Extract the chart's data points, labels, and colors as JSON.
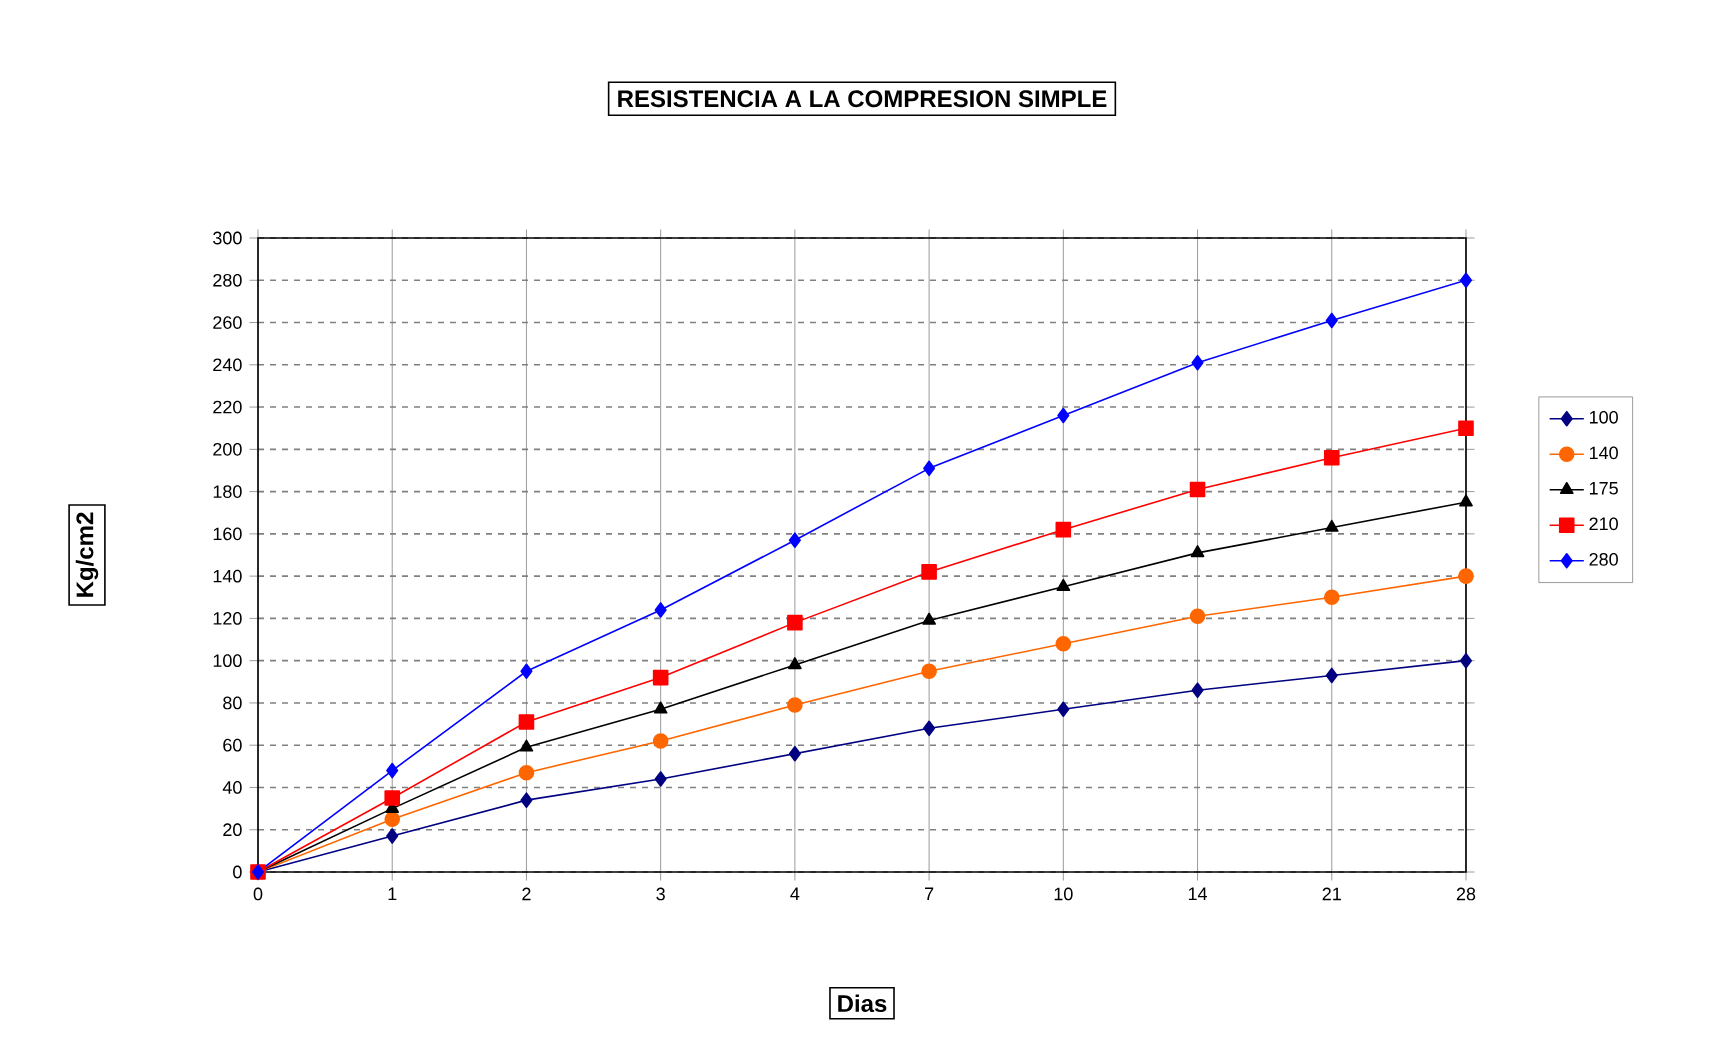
{
  "chart_data": {
    "type": "line",
    "title": "RESISTENCIA A LA COMPRESION SIMPLE",
    "xlabel": "Dias",
    "ylabel": "Kg/cm2",
    "categories": [
      "0",
      "1",
      "2",
      "3",
      "4",
      "7",
      "10",
      "14",
      "21",
      "28"
    ],
    "series": [
      {
        "name": "100",
        "color": "#000080",
        "marker": "diamond",
        "values": [
          0,
          17,
          34,
          44,
          56,
          68,
          77,
          86,
          93,
          100
        ]
      },
      {
        "name": "140",
        "color": "#ff6600",
        "marker": "circle",
        "values": [
          0,
          25,
          47,
          62,
          79,
          95,
          108,
          121,
          130,
          140
        ]
      },
      {
        "name": "175",
        "color": "#000000",
        "marker": "triangle",
        "values": [
          0,
          30,
          59,
          77,
          98,
          119,
          135,
          151,
          163,
          175
        ]
      },
      {
        "name": "210",
        "color": "#ff0000",
        "marker": "square",
        "values": [
          0,
          35,
          71,
          92,
          118,
          142,
          162,
          181,
          196,
          210
        ]
      },
      {
        "name": "280",
        "color": "#0000ff",
        "marker": "diamond",
        "values": [
          0,
          48,
          95,
          124,
          157,
          191,
          216,
          241,
          261,
          280
        ]
      }
    ],
    "ylim": [
      0,
      300
    ],
    "yticks": [
      0,
      20,
      40,
      60,
      80,
      100,
      120,
      140,
      160,
      180,
      200,
      220,
      240,
      260,
      280,
      300
    ],
    "grid": true,
    "legend": "right",
    "line_style": "solid"
  }
}
